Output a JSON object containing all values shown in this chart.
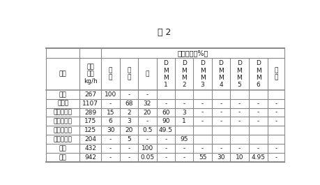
{
  "title": "表 2",
  "header1_text": "组成分布（%）",
  "header2_labels": [
    "物流",
    "进料\n速率\nkg/h",
    "甲\n醇",
    "甲\n醛",
    "水",
    "D\nM\nM\n1",
    "D\nM\nM\n2",
    "D\nM\nM\n3",
    "D\nM\nM\n4",
    "D\nM\nM\n5",
    "D\nM\nM\n6",
    "其\n他"
  ],
  "rows": [
    [
      "甲醇",
      "267",
      "100",
      "-",
      "-",
      "",
      "",
      "",
      "",
      "",
      "",
      ""
    ],
    [
      "浓甲醛",
      "1107",
      "-",
      "68",
      "32",
      "-",
      "-",
      "-",
      "-",
      "-",
      "-",
      "-"
    ],
    [
      "第一轻组分",
      "289",
      "15",
      "2",
      "20",
      "60",
      "3",
      "-",
      "-",
      "-",
      "-",
      "-"
    ],
    [
      "第二轻组分",
      "175",
      "6",
      "3",
      "-",
      "90",
      "1",
      "-",
      "-",
      "-",
      "-",
      "-"
    ],
    [
      "第三轻组分",
      "125",
      "30",
      "20",
      "0.5",
      "49.5",
      "",
      "",
      "",
      "",
      "",
      ""
    ],
    [
      "第四轻组分",
      "204",
      "-",
      "5",
      "-",
      "-",
      "95",
      "",
      "",
      "",
      "",
      ""
    ],
    [
      "废水",
      "432",
      "-",
      "-",
      "100",
      "-",
      "-",
      "-",
      "-",
      "-",
      "-",
      "-"
    ],
    [
      "产品",
      "942",
      "-",
      "-",
      "0.05",
      "-",
      "-",
      "55",
      "30",
      "10",
      "4.95",
      "-"
    ]
  ],
  "col_widths_rel": [
    1.55,
    1.0,
    0.85,
    0.85,
    0.85,
    0.85,
    0.85,
    0.85,
    0.85,
    0.85,
    0.9,
    0.75
  ],
  "background_color": "#ffffff",
  "line_color": "#888888",
  "text_color": "#1a1a1a",
  "font_size": 6.5,
  "title_font_size": 9.0
}
